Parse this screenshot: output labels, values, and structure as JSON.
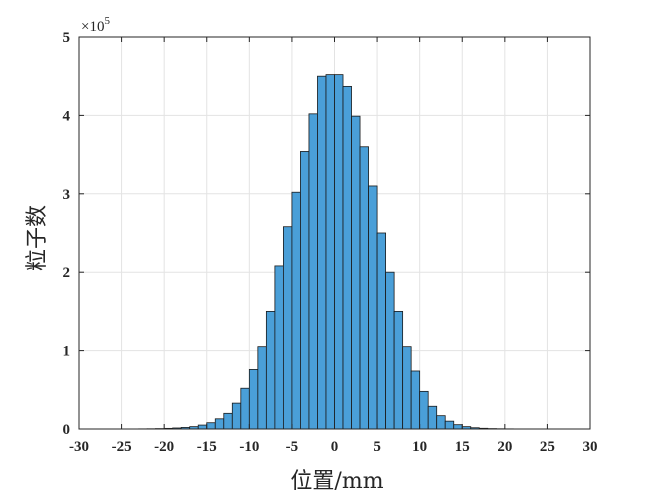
{
  "chart_data": {
    "type": "histogram",
    "title": "",
    "xlabel": "位置/mm",
    "ylabel": "粒子数",
    "y_multiplier_label": "×10",
    "y_multiplier_exponent": "5",
    "xlim": [
      -30,
      30
    ],
    "ylim": [
      0,
      5
    ],
    "y_scale_factor": 100000,
    "grid": true,
    "bin_width": 1,
    "bar_color": "#4a9fd8",
    "bar_edge_color": "#1a1a1a",
    "xticks": [
      -30,
      -25,
      -20,
      -15,
      -10,
      -5,
      0,
      5,
      10,
      15,
      20,
      25,
      30
    ],
    "xtick_labels": [
      "-30",
      "-25",
      "-20",
      "-15",
      "-10",
      "-5",
      "0",
      "5",
      "10",
      "15",
      "20",
      "25",
      "30"
    ],
    "yticks": [
      0,
      1,
      2,
      3,
      4,
      5
    ],
    "ytick_labels": [
      "0",
      "1",
      "2",
      "3",
      "4",
      "5"
    ],
    "bin_starts": [
      -24,
      -23,
      -22,
      -21,
      -20,
      -19,
      -18,
      -17,
      -16,
      -15,
      -14,
      -13,
      -12,
      -11,
      -10,
      -9,
      -8,
      -7,
      -6,
      -5,
      -4,
      -3,
      -2,
      -1,
      0,
      1,
      2,
      3,
      4,
      5,
      6,
      7,
      8,
      9,
      10,
      11,
      12,
      13,
      14,
      15,
      16,
      17,
      18,
      19,
      20,
      21,
      22,
      23
    ],
    "values": [
      0.001,
      0.002,
      0.003,
      0.005,
      0.008,
      0.013,
      0.02,
      0.03,
      0.05,
      0.08,
      0.13,
      0.2,
      0.33,
      0.52,
      0.76,
      1.05,
      1.5,
      2.08,
      2.58,
      3.02,
      3.54,
      4.02,
      4.5,
      4.52,
      4.52,
      4.37,
      3.99,
      3.6,
      3.1,
      2.5,
      2.0,
      1.5,
      1.05,
      0.74,
      0.48,
      0.29,
      0.17,
      0.1,
      0.055,
      0.03,
      0.016,
      0.009,
      0.005,
      0.003,
      0.002,
      0.001,
      0.001,
      0.0005
    ]
  }
}
